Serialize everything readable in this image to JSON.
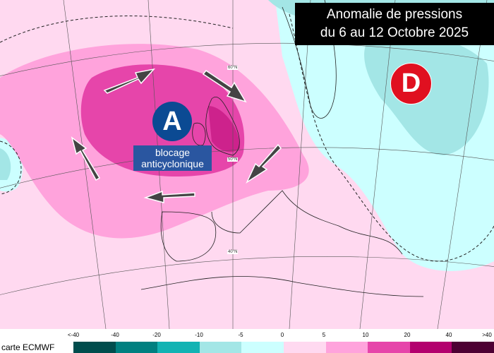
{
  "title": {
    "line1": "Anomalie de pressions",
    "line2": "du 6 au 12 Octobre 2025"
  },
  "centers": {
    "high": {
      "letter": "A",
      "label_line1": "blocage",
      "label_line2": "anticyclonique",
      "color": "#0b4a93"
    },
    "low": {
      "letter": "D",
      "color": "#e01020"
    }
  },
  "latitudes": [
    "60°N",
    "50°N",
    "40°N"
  ],
  "legend": {
    "source": "carte ECMWF",
    "ticks": [
      "<-40",
      "-40",
      "-20",
      "-10",
      "-5",
      "0",
      "5",
      "10",
      "20",
      "40",
      ">40"
    ],
    "colors": [
      "#004d4d",
      "#008080",
      "#12b3b3",
      "#a3e6e6",
      "#ccffff",
      "#ffd9f0",
      "#ffa3dc",
      "#e645aa",
      "#b3006e",
      "#4d0033"
    ]
  },
  "arrows": [
    "arrow-northeast",
    "arrow-southeast",
    "arrow-southwest",
    "arrow-west",
    "arrow-northwest"
  ]
}
